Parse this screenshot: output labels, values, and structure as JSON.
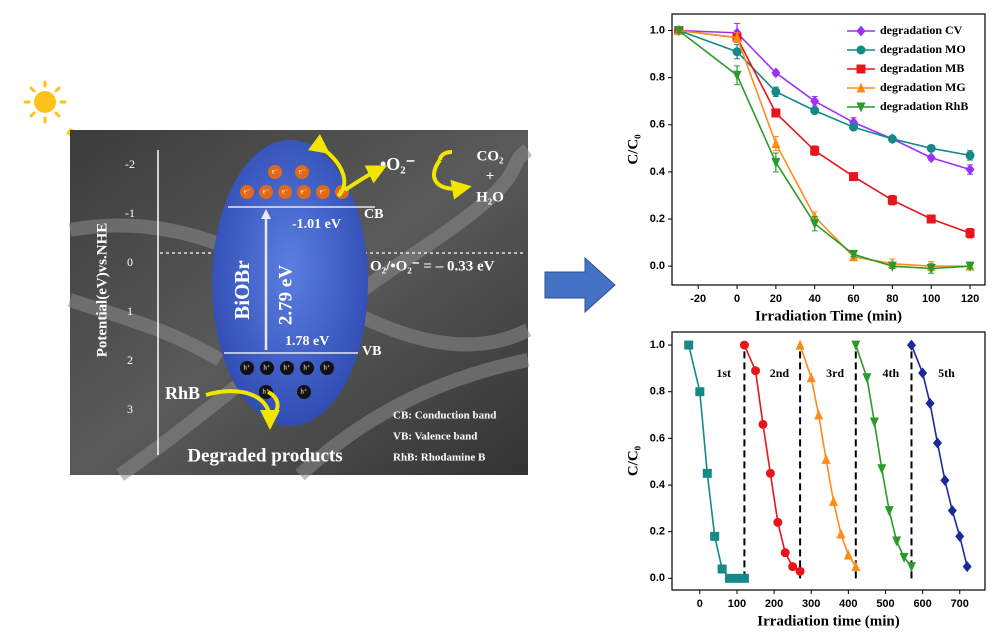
{
  "diagram": {
    "potential_axis": {
      "label": "Potential(eV)vs.NHE",
      "ticks": [
        "-2",
        "-1",
        "0",
        "1",
        "2",
        "3"
      ]
    },
    "semiconductor": "BiOBr",
    "band_gap": "2.79 eV",
    "cb_potential": "-1.01 eV",
    "vb_potential": "1.78 eV",
    "cb": "CB",
    "vb": "VB",
    "redox": "O₂/•O₂⁻ = – 0.33  eV",
    "superoxide": "•O₂⁻",
    "products": [
      "CO₂",
      "+",
      "H₂O"
    ],
    "dye": "RhB",
    "degraded": "Degraded products",
    "electron": "e⁻",
    "hole": "h⁺",
    "legend": [
      "CB:  Conduction band",
      "VB:  Valence band",
      "RhB:  Rhodamine B"
    ]
  },
  "chart_data": [
    {
      "type": "line",
      "xlabel": "Irradiation Time (min)",
      "ylabel": "C/C₀",
      "x": [
        -30,
        0,
        20,
        40,
        60,
        80,
        100,
        120
      ],
      "xlim": [
        -33.5,
        127.7
      ],
      "xticks": [
        -20,
        0,
        20,
        40,
        60,
        80,
        100,
        120
      ],
      "ylim": [
        -0.08,
        1.07
      ],
      "yticks": [
        {
          "value": 0,
          "label": "0.0"
        },
        0.2,
        0.4,
        0.6,
        0.8,
        {
          "value": 1,
          "label": "1.0"
        }
      ],
      "legend": "upper right",
      "series": [
        {
          "name": "degradation CV",
          "color": "#9b30ff",
          "marker": "diamond",
          "values": [
            1.0,
            0.99,
            0.82,
            0.7,
            0.61,
            0.54,
            0.46,
            0.41
          ],
          "errors": [
            0.01,
            0.04,
            0.01,
            0.02,
            0.02,
            0.01,
            0.01,
            0.02
          ]
        },
        {
          "name": "degradation MO",
          "color": "#138a87",
          "marker": "circle",
          "values": [
            1.0,
            0.91,
            0.74,
            0.66,
            0.59,
            0.54,
            0.5,
            0.47
          ],
          "errors": [
            0.01,
            0.03,
            0.02,
            0.01,
            0.01,
            0.01,
            0.01,
            0.02
          ]
        },
        {
          "name": "degradation MB",
          "color": "#e8141b",
          "marker": "square",
          "values": [
            1.0,
            0.97,
            0.65,
            0.49,
            0.38,
            0.28,
            0.2,
            0.14
          ],
          "errors": [
            0.01,
            0.02,
            0.01,
            0.02,
            0.01,
            0.02,
            0.01,
            0.02
          ]
        },
        {
          "name": "degradation MG",
          "color": "#ff8c1a",
          "marker": "triangle-up",
          "values": [
            1.0,
            0.97,
            0.52,
            0.21,
            0.04,
            0.01,
            0.0,
            0.0
          ],
          "errors": [
            0.01,
            0.02,
            0.03,
            0.02,
            0.01,
            0.02,
            0.02,
            0.01
          ]
        },
        {
          "name": "degradation RhB",
          "color": "#2a9a2a",
          "marker": "triangle-down",
          "values": [
            1.0,
            0.81,
            0.44,
            0.18,
            0.05,
            0.0,
            -0.01,
            0.0
          ],
          "errors": [
            0.01,
            0.04,
            0.04,
            0.03,
            0.01,
            0.01,
            0.02,
            0.01
          ]
        }
      ]
    },
    {
      "type": "line",
      "xlabel": "Irradiation time (min)",
      "ylabel": "C/C₀",
      "xlim": [
        -75,
        768
      ],
      "xticks": [
        0,
        100,
        200,
        300,
        400,
        500,
        600,
        700
      ],
      "ylim": [
        -0.05,
        1.056
      ],
      "yticks": [
        {
          "value": 0,
          "label": "0.0"
        },
        0.2,
        0.4,
        0.6,
        0.8,
        {
          "value": 1,
          "label": "1.0"
        }
      ],
      "vlines": [
        120,
        270,
        420,
        570
      ],
      "series": [
        {
          "name": "1st",
          "color": "#138a87",
          "marker": "square",
          "x": [
            -30,
            0,
            20,
            40,
            60,
            80,
            100,
            120
          ],
          "values": [
            1.0,
            0.8,
            0.45,
            0.18,
            0.04,
            0.0,
            0.0,
            0.0
          ]
        },
        {
          "name": "2nd",
          "color": "#e8141b",
          "marker": "circle",
          "x": [
            120,
            150,
            170,
            190,
            210,
            230,
            250,
            270
          ],
          "values": [
            1.0,
            0.89,
            0.66,
            0.45,
            0.24,
            0.11,
            0.05,
            0.03
          ]
        },
        {
          "name": "3rd",
          "color": "#ff8c1a",
          "marker": "triangle-up",
          "x": [
            270,
            300,
            320,
            340,
            360,
            380,
            400,
            420
          ],
          "values": [
            1.0,
            0.86,
            0.7,
            0.51,
            0.33,
            0.19,
            0.1,
            0.05
          ]
        },
        {
          "name": "4th",
          "color": "#2a9a2a",
          "marker": "triangle-down",
          "x": [
            420,
            450,
            470,
            490,
            510,
            530,
            550,
            570
          ],
          "values": [
            1.0,
            0.86,
            0.67,
            0.47,
            0.29,
            0.16,
            0.09,
            0.05
          ]
        },
        {
          "name": "5th",
          "color": "#1a2a9a",
          "marker": "diamond",
          "x": [
            570,
            600,
            620,
            640,
            660,
            680,
            700,
            720
          ],
          "values": [
            1.0,
            0.88,
            0.75,
            0.58,
            0.42,
            0.29,
            0.18,
            0.05
          ]
        }
      ]
    }
  ]
}
